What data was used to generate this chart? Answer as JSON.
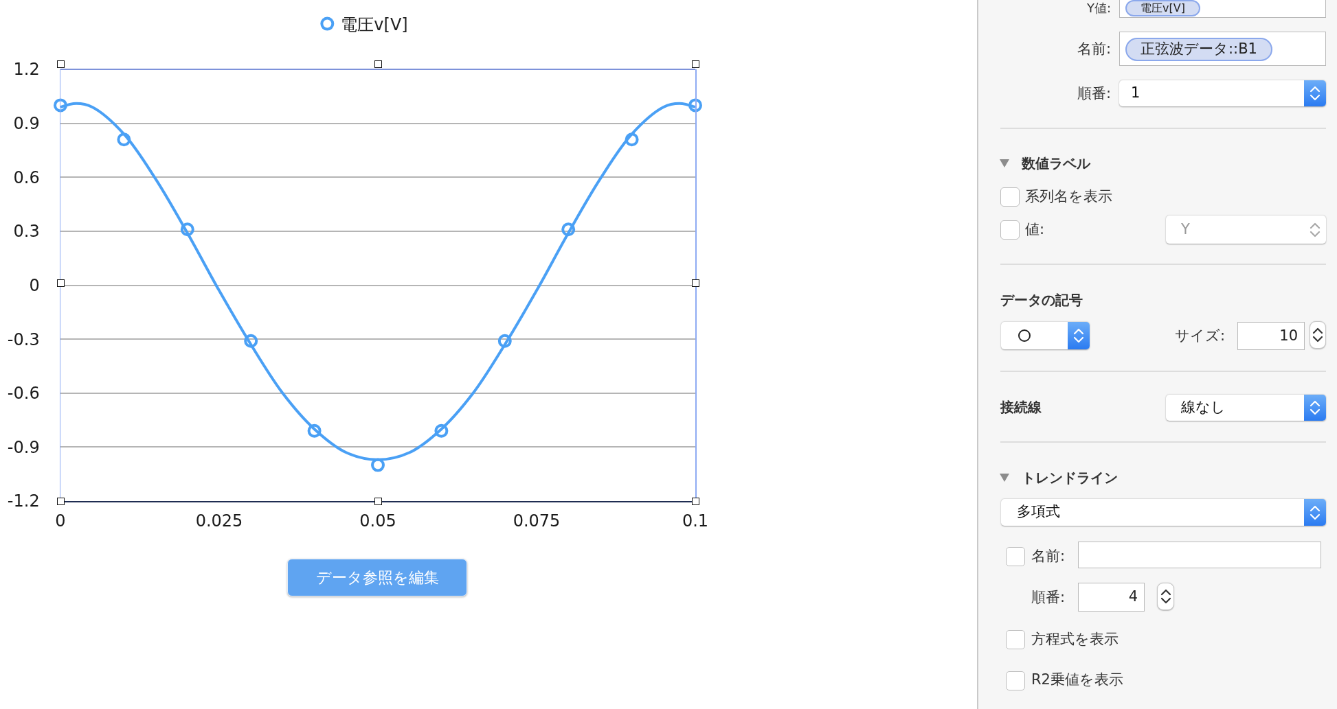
{
  "chart_data": [
    {
      "type": "scatter",
      "legend": "top",
      "marker": "circle",
      "grid": "y",
      "x": [
        0,
        0.01,
        0.02,
        0.03,
        0.04,
        0.05,
        0.06,
        0.07,
        0.08,
        0.09,
        0.1
      ],
      "xlim": [
        0,
        0.1
      ],
      "xticks": [
        0,
        0.025,
        0.05,
        0.075,
        0.1
      ],
      "ylim": [
        -1.2,
        1.2
      ],
      "yticks": [
        1.2,
        0.9,
        0.6,
        0.3,
        0,
        -0.3,
        -0.6,
        -0.9,
        -1.2
      ],
      "series": [
        {
          "name": "電圧v[V]",
          "color": "#4aa0f5",
          "values": [
            1,
            0.81,
            0.31,
            -0.31,
            -0.81,
            -1,
            -0.81,
            -0.31,
            0.31,
            0.81,
            1
          ]
        },
        {
          "type": "line",
          "marker": "none",
          "color": "#4aa0f5",
          "x": [
            0,
            0.0025,
            0.005,
            0.01,
            0.015,
            0.02,
            0.025,
            0.03,
            0.035,
            0.04,
            0.045,
            0.05,
            0.055,
            0.06,
            0.065,
            0.07,
            0.075,
            0.08,
            0.085,
            0.09,
            0.095,
            0.0975,
            0.1
          ],
          "values": [
            0.99,
            1.01,
            0.99,
            0.84,
            0.59,
            0.29,
            -0.03,
            -0.33,
            -0.6,
            -0.8,
            -0.93,
            -0.97,
            -0.93,
            -0.8,
            -0.6,
            -0.33,
            -0.03,
            0.29,
            0.59,
            0.84,
            0.99,
            1.01,
            0.99
          ]
        }
      ],
      "annotations": [
        "データ参照を編集"
      ]
    },
    {
      "type": "other",
      "annotations": [
        "Y値:",
        "電圧v[V]",
        "名前:",
        "正弦波データ::B1",
        "順番:",
        "1",
        "数値ラベル",
        "系列名を表示",
        "値:",
        "Y",
        "データの記号",
        "サイズ:",
        "10",
        "接続線",
        "線なし",
        "トレンドライン",
        "多項式",
        "名前:",
        "順番:",
        "4",
        "方程式を表示",
        "R2乗値を表示"
      ]
    }
  ]
}
